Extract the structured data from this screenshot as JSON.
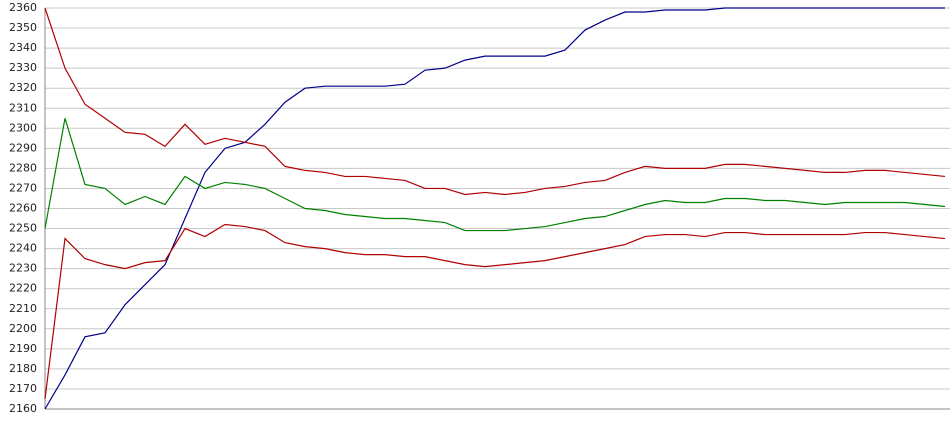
{
  "chart_data": {
    "type": "line",
    "categories": [
      null,
      null,
      null,
      null,
      null,
      null,
      null,
      null,
      null,
      null,
      null,
      null,
      null,
      null,
      null,
      null,
      null,
      null,
      null,
      null,
      null,
      null,
      null,
      null,
      null,
      null,
      null,
      null,
      null,
      null,
      null,
      null,
      null,
      null,
      null,
      null,
      null,
      null,
      null,
      null,
      null,
      null,
      null,
      null,
      null,
      null
    ],
    "series": [
      {
        "color": "#00008b",
        "values": [
          2160,
          2177,
          2196,
          2198,
          2212,
          2222,
          2232,
          2255,
          2278,
          2290,
          2293,
          2302,
          2313,
          2320,
          2321,
          2321,
          2321,
          2321,
          2322,
          2329,
          2330,
          2334,
          2336,
          2336,
          2336,
          2336,
          2339,
          2349,
          2354,
          2358,
          2358,
          2359,
          2359,
          2359,
          2360,
          2360,
          2360,
          2360,
          2360,
          2360,
          2360,
          2360,
          2360,
          2360,
          2360,
          2360
        ]
      },
      {
        "color": "#b00000",
        "values": [
          2360,
          2330,
          2312,
          2305,
          2298,
          2297,
          2291,
          2302,
          2292,
          2295,
          2293,
          2291,
          2281,
          2279,
          2278,
          2276,
          2276,
          2275,
          2274,
          2270,
          2270,
          2267,
          2268,
          2267,
          2268,
          2270,
          2271,
          2273,
          2274,
          2278,
          2281,
          2280,
          2280,
          2280,
          2282,
          2282,
          2281,
          2280,
          2279,
          2278,
          2278,
          2279,
          2279,
          2278,
          2277,
          2276
        ]
      },
      {
        "color": "#008000",
        "values": [
          2250,
          2305,
          2272,
          2270,
          2262,
          2266,
          2262,
          2276,
          2270,
          2273,
          2272,
          2270,
          2265,
          2260,
          2259,
          2257,
          2256,
          2255,
          2255,
          2254,
          2253,
          2249,
          2249,
          2249,
          2250,
          2251,
          2253,
          2255,
          2256,
          2259,
          2262,
          2264,
          2263,
          2263,
          2265,
          2265,
          2264,
          2264,
          2263,
          2262,
          2263,
          2263,
          2263,
          2263,
          2262,
          2261
        ]
      },
      {
        "color": "#b00000",
        "values": [
          2165,
          2245,
          2235,
          2232,
          2230,
          2233,
          2234,
          2250,
          2246,
          2252,
          2251,
          2249,
          2243,
          2241,
          2240,
          2238,
          2237,
          2237,
          2236,
          2236,
          2234,
          2232,
          2231,
          2232,
          2233,
          2234,
          2236,
          2238,
          2240,
          2242,
          2246,
          2247,
          2247,
          2246,
          2248,
          2248,
          2247,
          2247,
          2247,
          2247,
          2247,
          2248,
          2248,
          2247,
          2246,
          2245
        ]
      }
    ],
    "ylim": [
      2160,
      2360
    ],
    "yticks": [
      2160,
      2170,
      2180,
      2190,
      2200,
      2210,
      2220,
      2230,
      2240,
      2250,
      2260,
      2270,
      2280,
      2290,
      2300,
      2310,
      2320,
      2330,
      2340,
      2350,
      2360
    ],
    "grid": true
  }
}
